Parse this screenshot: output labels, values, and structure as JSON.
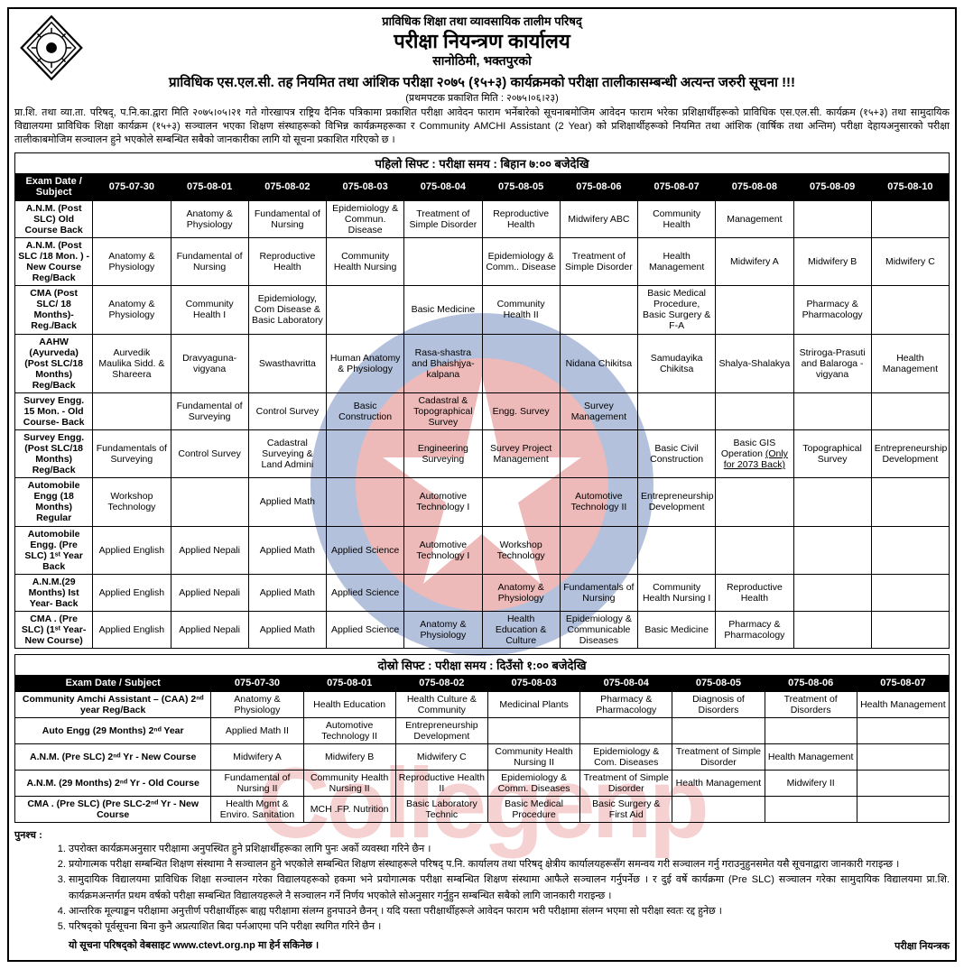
{
  "header": {
    "org": "प्राविधिक शिक्षा तथा व्यावसायिक तालीम परिषद्",
    "office": "परीक्षा नियन्त्रण कार्यालय",
    "location": "सानोठिमी, भक्तपुरको",
    "notice_title": "प्राविधिक एस.एल.सी. तह नियमित तथा आंशिक परीक्षा २०७५ (१५+३) कार्यक्रमको परीक्षा तालीकासम्बन्धी अत्यन्त जरुरी सूचना !!!",
    "pub_date": "(प्रथमपटक प्रकाशित मिति : २०७५।०६।२३)",
    "para": "प्रा.शि. तथा व्या.ता. परिषद्, प.नि.का.द्वारा मिति २०७५।०५।२१ गते गोरखापत्र राष्ट्रिय दैनिक पत्रिकामा प्रकाशित परीक्षा आवेदन फाराम भर्नेबारेको सूचनाबमोजिम आवेदन फाराम भरेका प्रशिक्षार्थीहरूको प्राविधिक एस.एल.सी. कार्यक्रम (१५+३) तथा सामुदायिक विद्यालयमा प्राविधिक शिक्षा कार्यक्रम (१५+३) सञ्चालन भएका शिक्षण संस्थाहरूको विभिन्न कार्यक्रमहरूका र Community AMCHI Assistant (2 Year) को प्रशिक्षार्थीहरूको नियमित तथा आंशिक (वार्षिक तथा अन्तिम) परीक्षा देहायअनुसारको परीक्षा तालीकाबमोजिम सञ्चालन हुने भएकोले सम्बन्धित सबैको जानकारीका लागि यो सूचना प्रकाशित गरिएको छ ।"
  },
  "shift1": {
    "title": "पहिलो सिफ्ट : परीक्षा समय : बिहान ७:०० बजेदेखि",
    "headers": [
      "Exam Date / Subject",
      "075-07-30",
      "075-08-01",
      "075-08-02",
      "075-08-03",
      "075-08-04",
      "075-08-05",
      "075-08-06",
      "075-08-07",
      "075-08-08",
      "075-08-09",
      "075-08-10"
    ],
    "rows": [
      {
        "label": "A.N.M. (Post SLC) Old Course Back",
        "cells": [
          "",
          "Anatomy & Physiology",
          "Fundamental of Nursing",
          "Epidemiology & Commun. Disease",
          "Treatment of Simple Disorder",
          "Reproductive Health",
          "Midwifery ABC",
          "Community Health",
          "Management",
          "",
          ""
        ]
      },
      {
        "label": "A.N.M. (Post SLC /18 Mon. ) -New Course Reg/Back",
        "cells": [
          "Anatomy & Physiology",
          "Fundamental of Nursing",
          "Reproductive Health",
          "Community Health Nursing",
          "",
          "Epidemiology & Comm.. Disease",
          "Treatment of Simple Disorder",
          "Health Management",
          "Midwifery A",
          "Midwifery B",
          "Midwifery C"
        ]
      },
      {
        "label": "CMA (Post SLC/ 18 Months)- Reg./Back",
        "cells": [
          "Anatomy & Physiology",
          "Community Health I",
          "Epidemiology, Com Disease & Basic Laboratory",
          "",
          "Basic Medicine",
          "Community Health II",
          "",
          "Basic Medical Procedure, Basic Surgery & F-A",
          "",
          "Pharmacy & Pharmacology",
          ""
        ]
      },
      {
        "label": "AAHW (Ayurveda) (Post SLC/18 Months) Reg/Back",
        "cells": [
          "Aurvedik Maulika Sidd. & Shareera",
          "Dravyaguna-vigyana",
          "Swasthavritta",
          "Human Anatomy & Physiology",
          "Rasa-shastra and Bhaishjya-kalpana",
          "",
          "Nidana Chikitsa",
          "Samudayika Chikitsa",
          "Shalya-Shalakya",
          "Striroga-Prasuti and Balaroga - vigyana",
          "Health Management"
        ]
      },
      {
        "label": "Survey Engg. 15 Mon. - Old Course- Back",
        "cells": [
          "",
          "Fundamental of Surveying",
          "Control Survey",
          "Basic Construction",
          "Cadastral & Topographical Survey",
          "Engg. Survey",
          "Survey Management",
          "",
          "",
          "",
          ""
        ]
      },
      {
        "label": "Survey Engg.(Post SLC/18 Months) Reg/Back",
        "cells": [
          "Fundamentals of Surveying",
          "Control Survey",
          "Cadastral Surveying & Land Admini",
          "",
          "Engineering Surveying",
          "Survey Project Management",
          "",
          "Basic Civil Construction",
          "Basic GIS Operation (Only for 2073 Back)",
          "Topographical Survey",
          "Entrepreneurship Development"
        ]
      },
      {
        "label": "Automobile Engg (18 Months) Regular",
        "cells": [
          "Workshop Technology",
          "",
          "Applied Math",
          "",
          "Automotive Technology I",
          "",
          "Automotive Technology II",
          "Entrepreneurship Development",
          "",
          "",
          ""
        ]
      },
      {
        "label": "Automobile Engg. (Pre SLC) 1ˢᵗ Year Back",
        "cells": [
          "Applied English",
          "Applied Nepali",
          "Applied Math",
          "Applied Science",
          "Automotive Technology I",
          "Workshop Technology",
          "",
          "",
          "",
          "",
          ""
        ]
      },
      {
        "label": "A.N.M.(29 Months) Ist Year- Back",
        "cells": [
          "Applied English",
          "Applied Nepali",
          "Applied Math",
          "Applied Science",
          "",
          "Anatomy & Physiology",
          "Fundamentals of Nursing",
          "Community Health Nursing I",
          "Reproductive Health",
          "",
          ""
        ]
      },
      {
        "label": "CMA . (Pre SLC) (1ˢᵗ Year-New Course)",
        "cells": [
          "Applied English",
          "Applied Nepali",
          "Applied Math",
          "Applied Science",
          "Anatomy & Physiology",
          "Health Education & Culture",
          "Epidemiology & Communicable Diseases",
          "Basic Medicine",
          "Pharmacy & Pharmacology",
          "",
          ""
        ]
      }
    ]
  },
  "shift2": {
    "title": "दोस्रो सिफ्ट : परीक्षा समय : दिउँसो १:०० बजेदेखि",
    "headers": [
      "Exam Date / Subject",
      "075-07-30",
      "075-08-01",
      "075-08-02",
      "075-08-03",
      "075-08-04",
      "075-08-05",
      "075-08-06",
      "075-08-07"
    ],
    "rows": [
      {
        "label": "Community Amchi Assistant – (CAA) 2ⁿᵈ year Reg/Back",
        "cells": [
          "Anatomy & Physiology",
          "Health Education",
          "Health Culture & Community",
          "Medicinal Plants",
          "Pharmacy & Pharmacology",
          "Diagnosis of Disorders",
          "Treatment of Disorders",
          "Health Management"
        ]
      },
      {
        "label": "Auto Engg (29 Months) 2ⁿᵈ Year",
        "cells": [
          "Applied Math II",
          "Automotive Technology II",
          "Entrepreneurship Development",
          "",
          "",
          "",
          "",
          ""
        ]
      },
      {
        "label": "A.N.M. (Pre SLC) 2ⁿᵈ Yr - New Course",
        "cells": [
          "Midwifery A",
          "Midwifery B",
          "Midwifery C",
          "Community Health Nursing II",
          "Epidemiology & Com. Diseases",
          "Treatment of Simple Disorder",
          "Health Management",
          ""
        ]
      },
      {
        "label": "A.N.M. (29 Months) 2ⁿᵈ Yr - Old Course",
        "cells": [
          "Fundamental of Nursing II",
          "Community Health Nursing II",
          "Reproductive Health II",
          "Epidemiology & Comm. Diseases",
          "Treatment of Simple Disorder",
          "Health Management",
          "Midwifery II",
          ""
        ]
      },
      {
        "label": "CMA . (Pre SLC) (Pre SLC-2ⁿᵈ Yr - New Course",
        "cells": [
          "Health Mgmt & Enviro. Sanitation",
          "MCH .FP. Nutrition",
          "Basic Laboratory Technic",
          "Basic Medical Procedure",
          "Basic Surgery & First Aid",
          "",
          "",
          ""
        ]
      }
    ]
  },
  "footer": {
    "punas": "पुनश्च :",
    "items": [
      "उपरोक्त कार्यक्रमअनुसार परीक्षामा अनुपस्थित हुने प्रशिक्षार्थीहरूका लागि पुनः अर्को व्यवस्था गरिने छैन ।",
      "प्रयोगात्मक परीक्षा सम्बन्धित शिक्षण संस्थामा नै सञ्चालन हुने भएकोले सम्बन्धित शिक्षण संस्थाहरूले परिषद् प.नि. कार्यालय तथा परिषद् क्षेत्रीय कार्यालयहरूसँग समन्वय गरी सञ्चालन गर्नु गराउनुहुनसमेत यसै सूचनाद्वारा जानकारी गराइन्छ ।",
      "सामुदायिक विद्यालयमा प्राविधिक शिक्षा सञ्चालन गरेका विद्यालयहरूको हकमा भने प्रयोगात्मक परीक्षा सम्बन्धित शिक्षण संस्थामा आफैले सञ्चालन गर्नुपर्नेछ । र दुई वर्षे कार्यक्रमा (Pre SLC) सञ्चालन गरेका सामुदायिक विद्यालयमा प्रा.शि. कार्यक्रमअन्तर्गत प्रथम वर्षको परीक्षा सम्बन्धित विद्यालयहरूले नै सञ्चालन गर्ने निर्णय भएकोले सोअनुसार गर्नुहुन सम्बन्धित सबैको लागि जानकारी गराइन्छ ।",
      "आन्तरिक मूल्याङ्कन परीक्षामा अनुत्तीर्ण परीक्षार्थीहरू बाह्य परीक्षामा संलग्न हुनपाउने छैनन् । यदि यस्ता परीक्षार्थीहरूले आवेदन फाराम भरी परीक्षामा संलग्न भएमा सो परीक्षा स्वतः रद्द हुनेछ ।",
      "परिषद्को पूर्वसूचना बिना कुनै अप्रत्याशित बिदा पर्नआएमा पनि परीक्षा स्थगित गरिने छैन ।"
    ],
    "final": "यो सूचना परिषद्को वेबसाइट www.ctevt.org.np मा हेर्न सकिनेछ ।",
    "signer": "परीक्षा नियन्त्रक"
  },
  "style": {
    "wm_circle_blue": "#2b4f9e",
    "wm_circle_red": "#d03a3a",
    "wm_text_color": "#d94a4a"
  }
}
